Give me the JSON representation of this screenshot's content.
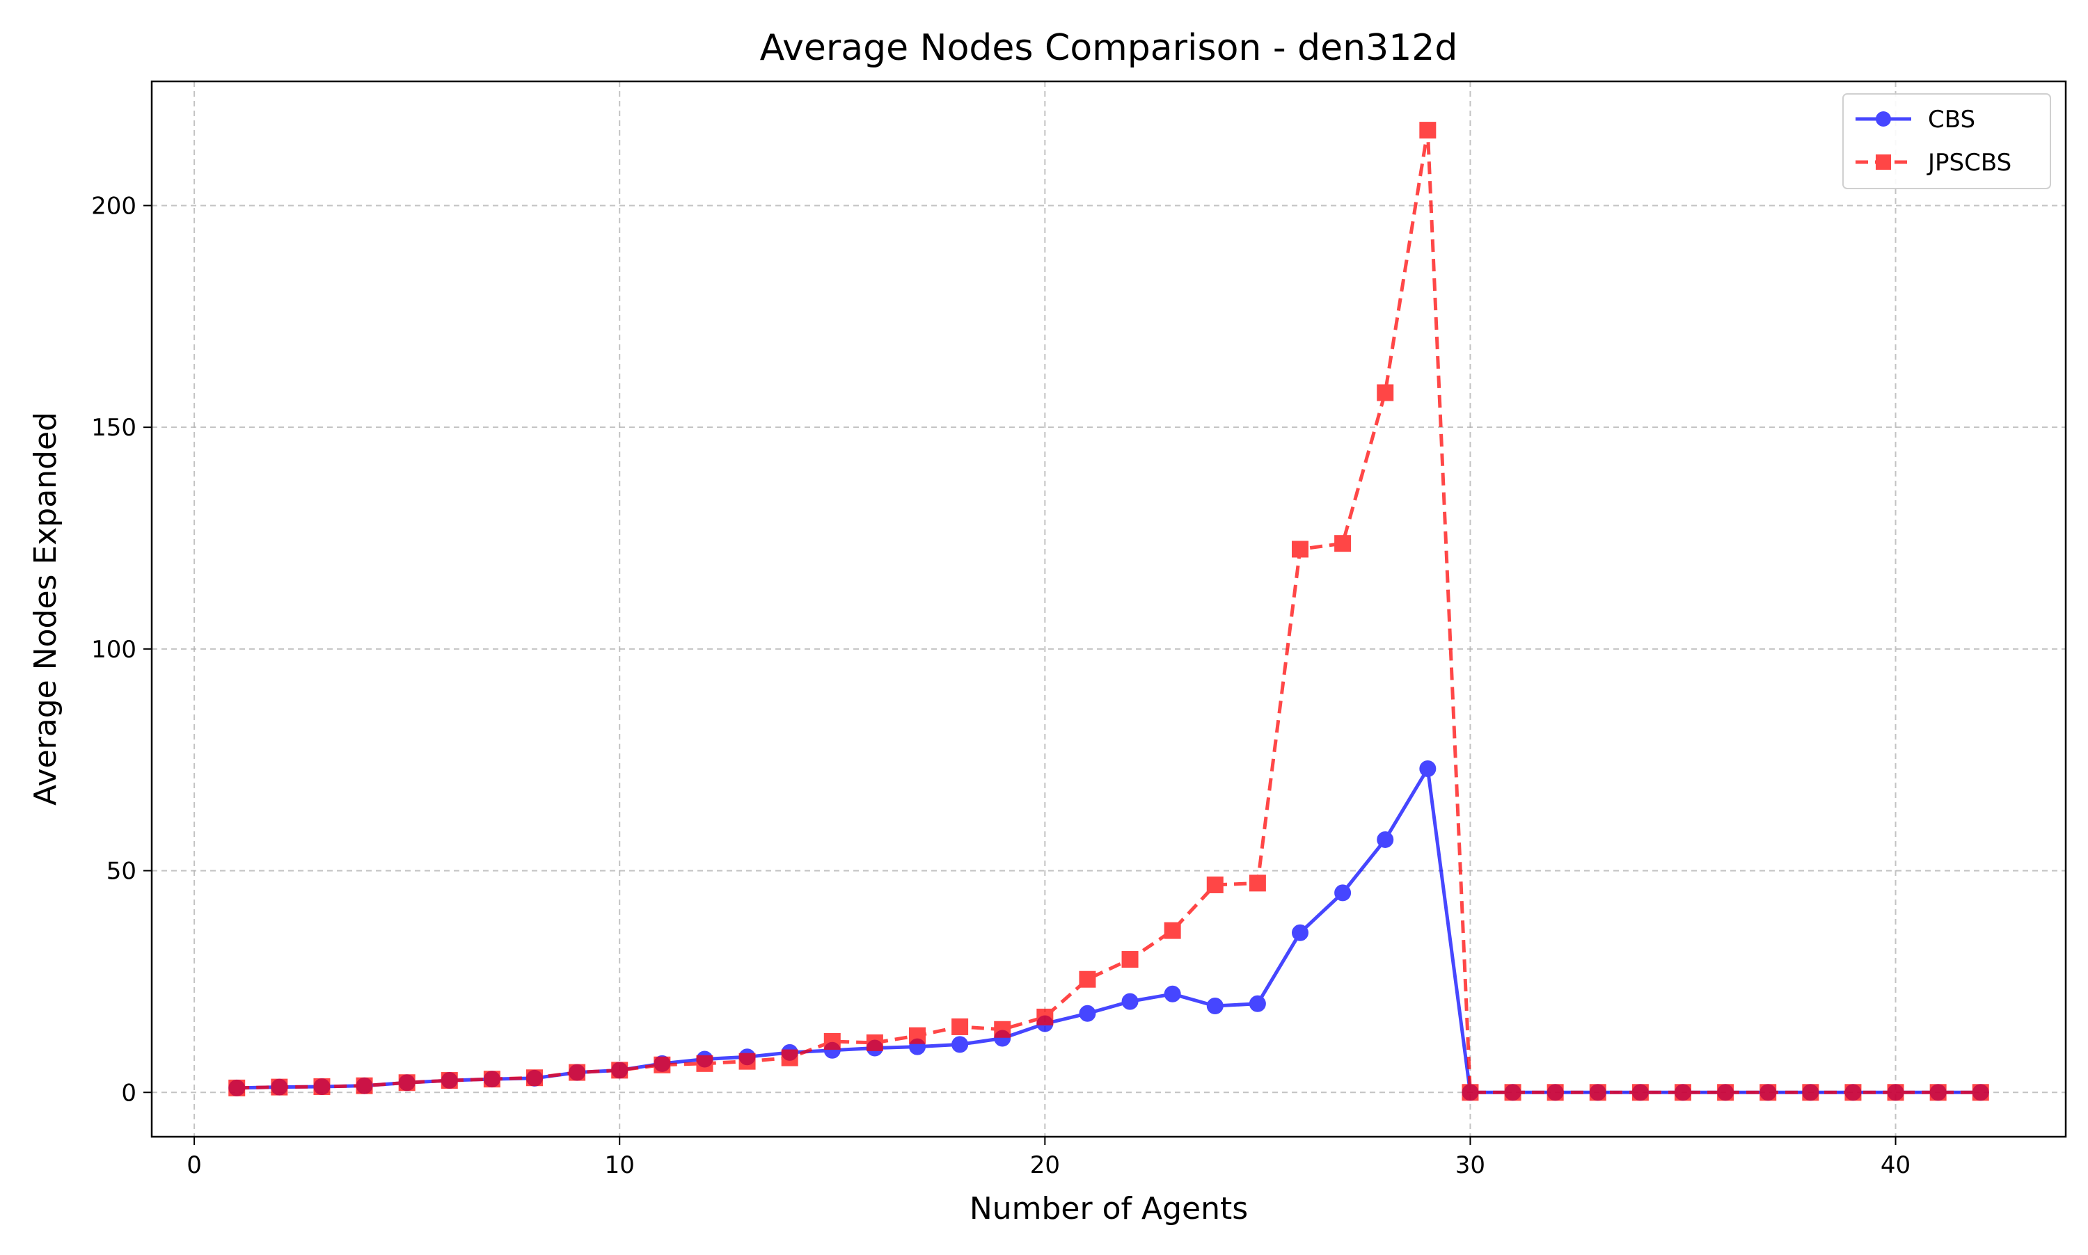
{
  "chart_data": {
    "type": "line",
    "title": "Average Nodes Comparison - den312d",
    "xlabel": "Number of Agents",
    "ylabel": "Average Nodes Expanded",
    "xlim": [
      -1,
      44
    ],
    "ylim": [
      -10,
      228
    ],
    "xticks": [
      0,
      10,
      20,
      30,
      40
    ],
    "yticks": [
      0,
      50,
      100,
      150,
      200
    ],
    "grid": true,
    "legend_position": "top-right",
    "x": [
      1,
      2,
      3,
      4,
      5,
      6,
      7,
      8,
      9,
      10,
      11,
      12,
      13,
      14,
      15,
      16,
      17,
      18,
      19,
      20,
      21,
      22,
      23,
      24,
      25,
      26,
      27,
      28,
      29,
      30,
      31,
      32,
      33,
      34,
      35,
      36,
      37,
      38,
      39,
      40,
      41,
      42
    ],
    "series": [
      {
        "name": "CBS",
        "color": "#0000ff",
        "marker": "circle",
        "line_style": "solid",
        "values": [
          1.0,
          1.2,
          1.3,
          1.5,
          2.2,
          2.7,
          3.0,
          3.2,
          4.5,
          5.0,
          6.5,
          7.5,
          8.0,
          9.0,
          9.5,
          10.0,
          10.3,
          10.8,
          12.2,
          15.5,
          17.8,
          20.5,
          22.2,
          19.5,
          20.0,
          36.0,
          45.0,
          57.0,
          73.0,
          0,
          0,
          0,
          0,
          0,
          0,
          0,
          0,
          0,
          0,
          0,
          0,
          0
        ]
      },
      {
        "name": "JPSCBS",
        "color": "#ff0000",
        "marker": "square",
        "line_style": "dashed",
        "values": [
          1.0,
          1.2,
          1.3,
          1.5,
          2.2,
          2.7,
          3.0,
          3.3,
          4.5,
          5.0,
          6.2,
          6.5,
          7.0,
          7.8,
          11.5,
          11.2,
          12.8,
          14.8,
          14.2,
          17.0,
          25.5,
          30.0,
          36.5,
          46.8,
          47.2,
          122.5,
          123.8,
          157.8,
          217.0,
          0,
          0,
          0,
          0,
          0,
          0,
          0,
          0,
          0,
          0,
          0,
          0,
          0
        ]
      }
    ]
  }
}
